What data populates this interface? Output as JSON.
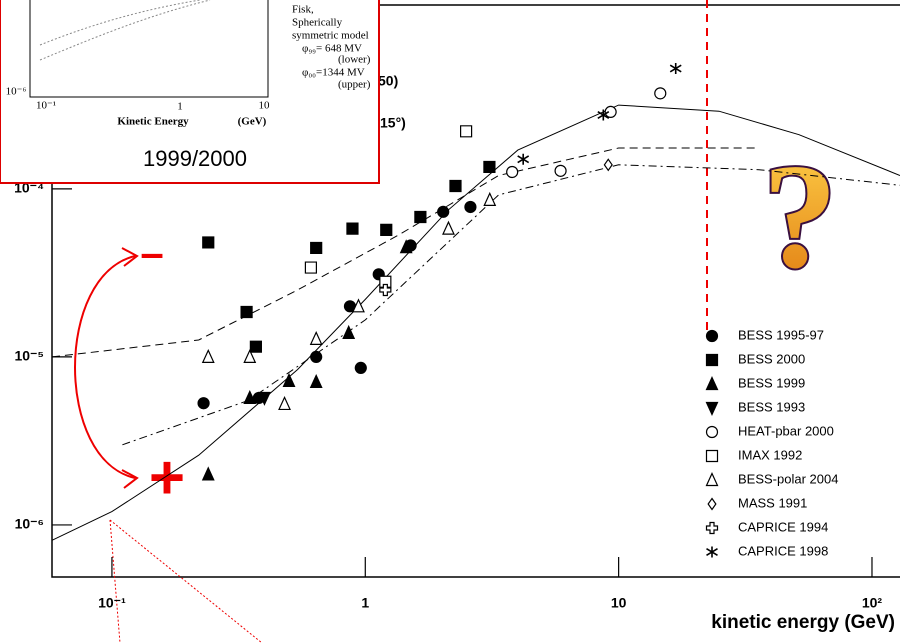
{
  "chart_data": {
    "type": "scatter",
    "xlabel": "kinetic energy (GeV)",
    "xlog": true,
    "ylog": true,
    "xlim": [
      0.058,
      129
    ],
    "ylim": [
      4.9e-07,
      0.00133
    ],
    "xticks": [
      {
        "value": 0.1,
        "label": "10⁻¹"
      },
      1,
      10,
      {
        "value": 100,
        "label": "10²"
      }
    ],
    "yticks": [
      {
        "value": 1e-06,
        "label": "10⁻⁶"
      },
      {
        "value": 1e-05,
        "label": "10⁻⁵"
      },
      {
        "value": 0.0001,
        "label": "10⁻⁴"
      }
    ],
    "legend": "lower right",
    "series": [
      {
        "name": "BESS 1995-97",
        "marker": "circle-filled",
        "color": "#000000",
        "x": [
          0.23,
          0.38,
          0.64,
          0.87,
          0.96,
          1.13,
          1.51,
          2.03,
          2.6
        ],
        "values": [
          5.3e-06,
          5.7e-06,
          1e-05,
          2e-05,
          8.6e-06,
          3.1e-05,
          4.6e-05,
          7.3e-05,
          7.8e-05
        ]
      },
      {
        "name": "BESS 2000",
        "marker": "square-filled",
        "color": "#000000",
        "x": [
          0.24,
          0.34,
          0.37,
          0.64,
          0.89,
          1.21,
          1.65,
          2.27,
          3.09
        ],
        "values": [
          4.8e-05,
          1.85e-05,
          1.15e-05,
          4.45e-05,
          5.8e-05,
          5.7e-05,
          6.8e-05,
          0.000104,
          0.000135
        ]
      },
      {
        "name": "BESS 1999",
        "marker": "triangle-filled",
        "color": "#000000",
        "x": [
          0.24,
          0.35,
          0.5,
          0.64,
          0.86,
          1.45
        ],
        "values": [
          2e-06,
          5.7e-06,
          7.2e-06,
          7.1e-06,
          1.39e-05,
          4.5e-05
        ]
      },
      {
        "name": "BESS 1993",
        "marker": "down-triangle-filled",
        "color": "#000000",
        "x": [
          0.4
        ],
        "values": [
          5.7e-06
        ]
      },
      {
        "name": "HEAT-pbar 2000",
        "marker": "circle-open",
        "color": "#000000",
        "x": [
          3.8,
          5.9,
          9.3,
          14.6
        ],
        "values": [
          0.000126,
          0.000128,
          0.000287,
          0.00037
        ]
      },
      {
        "name": "IMAX 1992",
        "marker": "square-open",
        "color": "#000000",
        "x": [
          0.61,
          1.2,
          2.5
        ],
        "values": [
          3.4e-05,
          2.8e-05,
          0.00022
        ]
      },
      {
        "name": "BESS-polar 2004",
        "marker": "triangle-open",
        "color": "#000000",
        "x": [
          0.24,
          0.35,
          0.48,
          0.64,
          0.94,
          2.13,
          3.1
        ],
        "values": [
          1e-05,
          1e-05,
          5.25e-06,
          1.28e-05,
          2e-05,
          5.8e-05,
          8.6e-05
        ]
      },
      {
        "name": "MASS 1991",
        "marker": "diamond-open",
        "color": "#000000",
        "x": [
          9.1
        ],
        "values": [
          0.000139
        ]
      },
      {
        "name": "CAPRICE 1994",
        "marker": "cross-open",
        "color": "#000000",
        "x": [
          1.2
        ],
        "values": [
          2.5e-05
        ]
      },
      {
        "name": "CAPRICE 1998",
        "marker": "star",
        "color": "#000000",
        "x": [
          4.2,
          8.7,
          16.8
        ],
        "values": [
          0.00015,
          0.000275,
          0.00052
        ]
      }
    ],
    "curves": [
      {
        "style": "solid",
        "x": [
          0.058,
          0.1,
          0.22,
          0.54,
          1,
          2.13,
          4.0,
          10,
          24.9,
          51.5,
          129
        ],
        "values": [
          8.1e-07,
          1.2e-06,
          2.6e-06,
          8.4e-06,
          2.2e-05,
          7.5e-05,
          0.00017,
          0.000315,
          0.00029,
          0.00021,
          0.00012
        ]
      },
      {
        "style": "dashed",
        "x": [
          0.058,
          0.22,
          0.54,
          1.35,
          3.36,
          10,
          35.8
        ],
        "values": [
          1e-05,
          1.26e-05,
          2.5e-05,
          5.3e-05,
          0.00012,
          0.000175,
          0.000175
        ]
      },
      {
        "style": "dashdot",
        "x": [
          0.11,
          0.345,
          1,
          3.36,
          10,
          35.8,
          129
        ],
        "values": [
          3e-06,
          5.5e-06,
          1.66e-05,
          9.2e-05,
          0.000139,
          0.00013,
          0.000105
        ]
      }
    ],
    "annotations": {
      "partial1": "50)",
      "partial2": "15°)",
      "question": "?",
      "minus": "–",
      "plus": "+"
    },
    "inset": {
      "lines": [
        "Fisk,",
        "Spherically",
        "symmetric model",
        "φ₉₉= 648 MV",
        "(lower)",
        "φ₀₀=1344 MV",
        "(upper)"
      ],
      "xticks": [
        "10⁻¹",
        "1",
        "10"
      ],
      "ytick": "10⁻⁶",
      "xlabel": "Kinetic Energy",
      "xunit": "(GeV)",
      "caption": "1999/2000"
    }
  }
}
